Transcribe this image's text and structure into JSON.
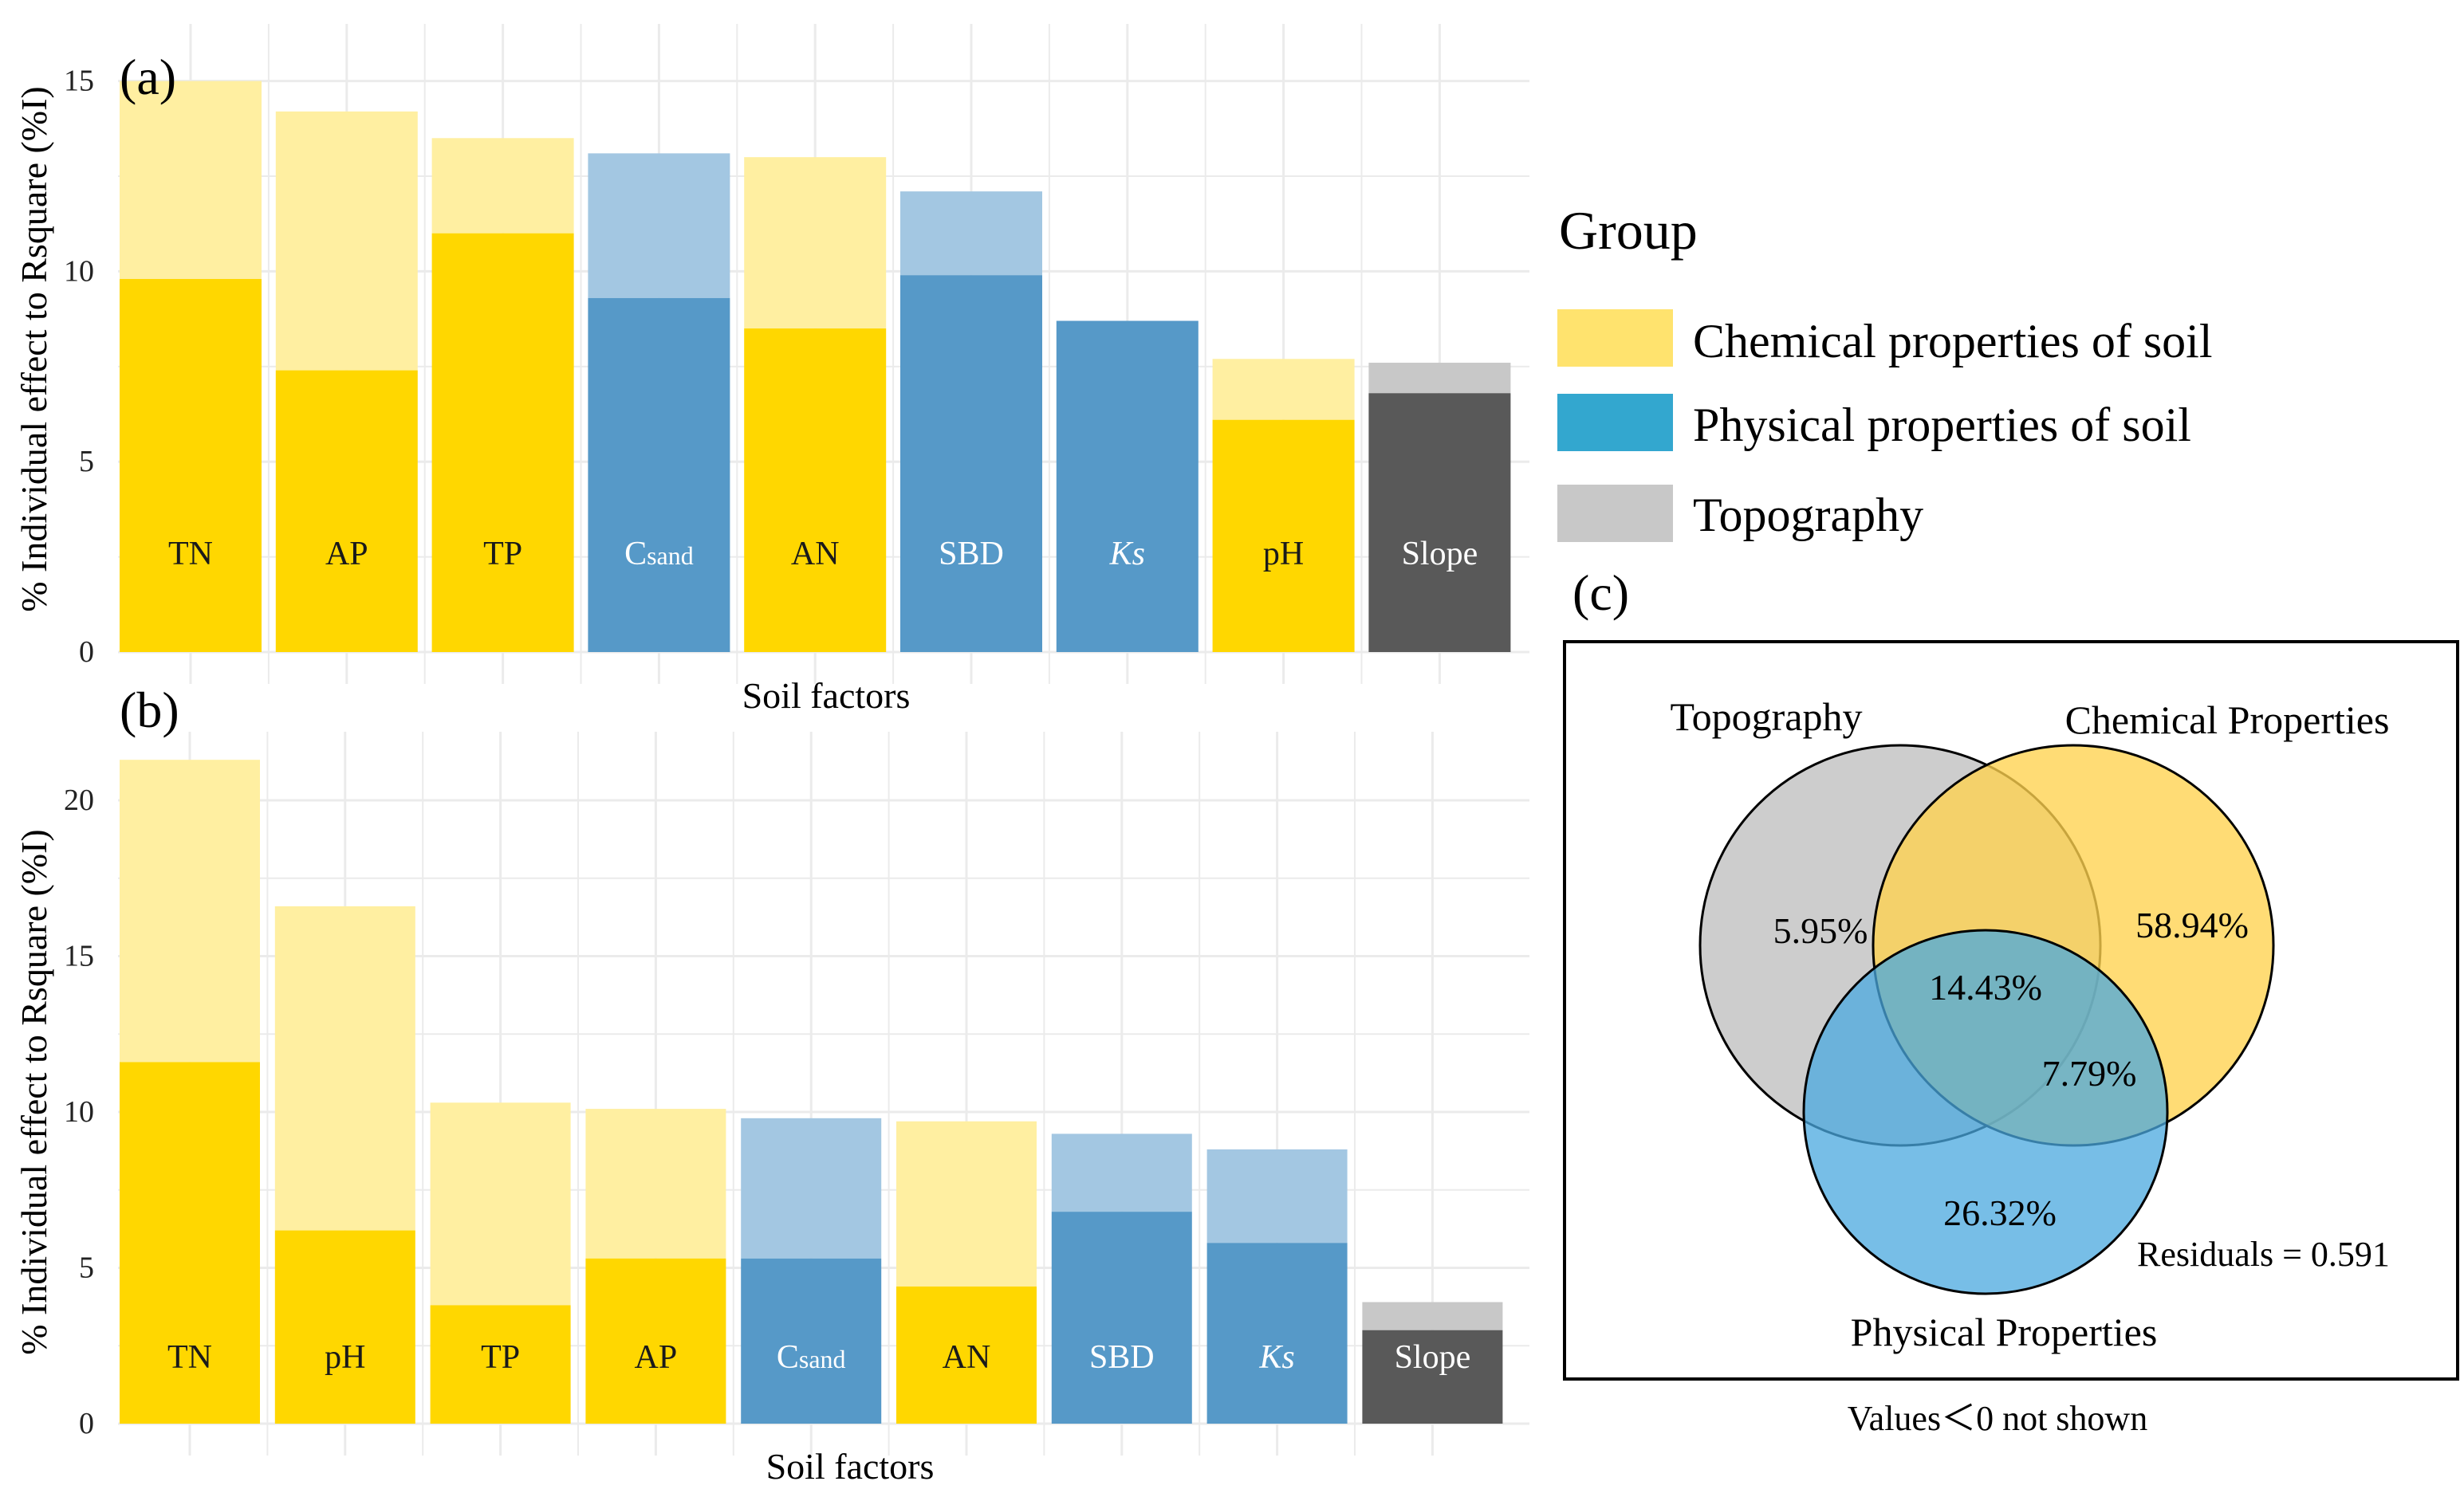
{
  "colors": {
    "chemical": "#FFD700",
    "chemical_light": "#FFEFA1",
    "physical": "#5699C8",
    "physical_light": "#A3C7E2",
    "topography": "#595959",
    "topography_light": "#C8C8C8",
    "grid": "#EBEBEB"
  },
  "legend": {
    "title": "Group",
    "items": [
      {
        "label": "Chemical properties of soil",
        "color": "#FFE36E",
        "icon": "yellow-swatch"
      },
      {
        "label": "Physical properties of soil",
        "color": "#33A7CF",
        "icon": "blue-swatch"
      },
      {
        "label": "Topography",
        "color": "#C8C8C8",
        "icon": "grey-swatch"
      }
    ]
  },
  "chart_data": [
    {
      "type": "bar",
      "panel": "(a)",
      "xlabel": "Soil factors",
      "ylabel": "% Individual effect to Rsquare (%I)",
      "ylim": [
        0,
        16.5
      ],
      "yticks": [
        0,
        5,
        10,
        15
      ],
      "grid": true,
      "categories": [
        {
          "label": "TN",
          "group": "chemical"
        },
        {
          "label": "AP",
          "group": "chemical"
        },
        {
          "label": "TP",
          "group": "chemical"
        },
        {
          "label": "Csand",
          "main": "C",
          "sub": "sand",
          "group": "physical"
        },
        {
          "label": "AN",
          "group": "chemical"
        },
        {
          "label": "SBD",
          "group": "physical"
        },
        {
          "label": "Ks",
          "group": "physical",
          "italic": true
        },
        {
          "label": "pH",
          "group": "chemical"
        },
        {
          "label": "Slope",
          "group": "topography"
        }
      ],
      "series": [
        {
          "role": "lower",
          "values": [
            9.8,
            7.4,
            11.0,
            9.3,
            8.5,
            9.9,
            8.7,
            6.1,
            6.8
          ]
        },
        {
          "role": "total",
          "values": [
            15.0,
            14.2,
            13.5,
            13.1,
            13.0,
            12.1,
            8.7,
            7.7,
            7.6
          ]
        }
      ]
    },
    {
      "type": "bar",
      "panel": "(b)",
      "xlabel": "Soil factors",
      "ylabel": "% Individual effect to Rsquare (%I)",
      "ylim": [
        0,
        22.2
      ],
      "yticks": [
        0,
        5,
        10,
        15,
        20
      ],
      "grid": true,
      "categories": [
        {
          "label": "TN",
          "group": "chemical"
        },
        {
          "label": "pH",
          "group": "chemical"
        },
        {
          "label": "TP",
          "group": "chemical"
        },
        {
          "label": "AP",
          "group": "chemical"
        },
        {
          "label": "Csand",
          "main": "C",
          "sub": "sand",
          "group": "physical"
        },
        {
          "label": "AN",
          "group": "chemical"
        },
        {
          "label": "SBD",
          "group": "physical"
        },
        {
          "label": "Ks",
          "group": "physical",
          "italic": true
        },
        {
          "label": "Slope",
          "group": "topography"
        }
      ],
      "series": [
        {
          "role": "lower",
          "values": [
            11.6,
            6.2,
            3.8,
            5.3,
            5.3,
            4.4,
            6.8,
            5.8,
            3.0
          ]
        },
        {
          "role": "total",
          "values": [
            21.3,
            16.6,
            10.3,
            10.1,
            9.8,
            9.7,
            9.3,
            8.8,
            3.9
          ]
        }
      ]
    },
    {
      "type": "venn",
      "panel": "(c)",
      "sets": [
        {
          "name": "Topography",
          "color": "#C8C8C8",
          "only": "5.95%"
        },
        {
          "name": "Chemical Properties",
          "color": "#FFD24E",
          "only": "58.94%"
        },
        {
          "name": "Physical Properties",
          "color": "#68B8E6",
          "only": "26.32%"
        }
      ],
      "overlaps": {
        "all_three": "14.43%",
        "chemical_physical": "7.79%"
      },
      "residuals": "Residuals = 0.591",
      "footnote": "Values＜0 not shown"
    }
  ]
}
